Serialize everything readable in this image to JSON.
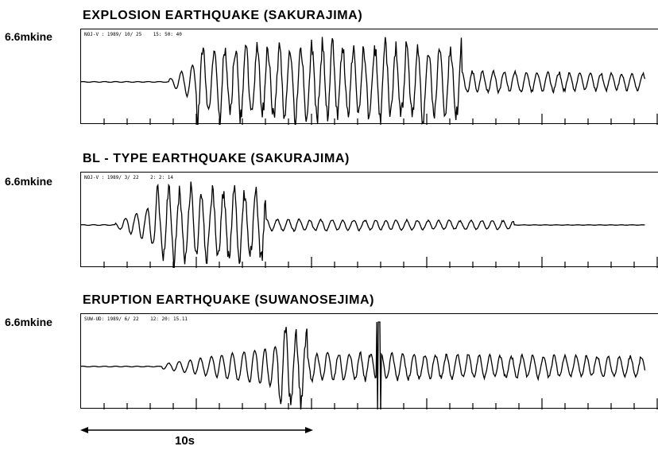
{
  "chart_data": [
    {
      "type": "line",
      "title": "EXPLOSION EARTHQUAKE (SAKURAJIMA)",
      "amplitude_scale": "6.6mkine",
      "station_stamp": "NOJ-V : 1989/ 10/ 25    15: 50: 40",
      "x_unit": "s",
      "duration_s": 24.5,
      "description_of_signal": {
        "quiet_until_s": 3.8,
        "large_amplitude_from_s": 5.0,
        "large_amplitude_until_s": 16.5,
        "coda_until_s": 24.5,
        "peak_relative_amplitude": 1.0,
        "coda_relative_amplitude": 0.28
      },
      "ticks_per_second": 1
    },
    {
      "type": "line",
      "title": "BL - TYPE EARTHQUAKE (SAKURAJIMA)",
      "amplitude_scale": "6.6mkine",
      "station_stamp": "NOJ-V : 1989/ 3/ 22    2: 2: 14",
      "x_unit": "s",
      "duration_s": 24.5,
      "description_of_signal": {
        "quiet_until_s": 1.5,
        "large_amplitude_from_s": 3.2,
        "large_amplitude_until_s": 8.0,
        "coda_until_s": 18.8,
        "peak_relative_amplitude": 1.0,
        "coda_relative_amplitude": 0.15
      },
      "ticks_per_second": 1
    },
    {
      "type": "line",
      "title": "ERUPTION EARTHQUAKE (SUWANOSEJIMA)",
      "amplitude_scale": "6.6mkine",
      "station_stamp": "SUW-UD: 1989/ 6/ 22    12: 20: 15.11",
      "x_unit": "s",
      "duration_s": 24.5,
      "description_of_signal": {
        "quiet_until_s": 3.5,
        "large_amplitude_from_s": 8.5,
        "large_amplitude_until_s": 9.8,
        "spike_at_s": 12.9,
        "coda_until_s": 24.5,
        "peak_relative_amplitude": 1.0,
        "coda_relative_amplitude": 0.35
      },
      "ticks_per_second": 1
    }
  ],
  "time_scale": {
    "label": "10s",
    "seconds": 10
  }
}
